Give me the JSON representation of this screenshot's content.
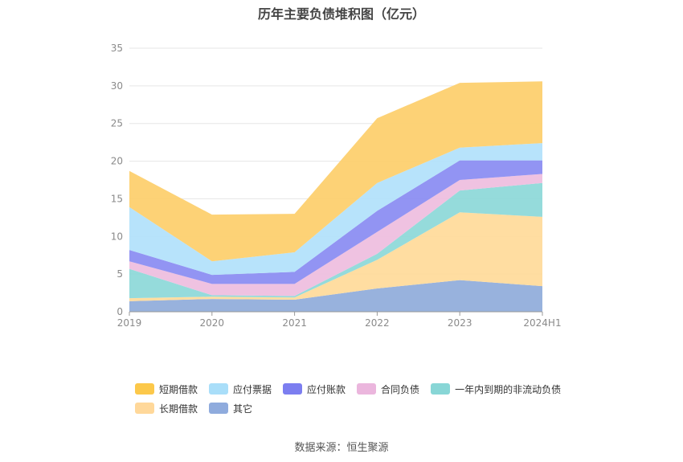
{
  "chart_data": {
    "type": "area",
    "stacked": true,
    "title": "历年主要负债堆积图（亿元）",
    "categories": [
      "2019",
      "2020",
      "2021",
      "2022",
      "2023",
      "2024H1"
    ],
    "ylim": [
      0,
      35
    ],
    "yticks": [
      0,
      5,
      10,
      15,
      20,
      25,
      30,
      35
    ],
    "grid": true,
    "legend_position": "bottom",
    "series": [
      {
        "name": "其它",
        "color": "#92aedb",
        "values": [
          1.4,
          1.7,
          1.6,
          3.1,
          4.2,
          3.4
        ]
      },
      {
        "name": "长期借款",
        "color": "#ffdb9c",
        "values": [
          0.4,
          0.3,
          0.3,
          3.8,
          9.0,
          9.2
        ]
      },
      {
        "name": "一年内到期的非流动负债",
        "color": "#8fd9d9",
        "values": [
          3.9,
          0.2,
          0.2,
          0.8,
          2.9,
          4.5
        ]
      },
      {
        "name": "合同负债",
        "color": "#eebfdf",
        "values": [
          1.0,
          1.5,
          1.6,
          2.9,
          1.4,
          1.2
        ]
      },
      {
        "name": "应付账款",
        "color": "#8c8ef2",
        "values": [
          1.5,
          1.2,
          1.6,
          2.8,
          2.6,
          1.8
        ]
      },
      {
        "name": "应付票据",
        "color": "#b3e2fb",
        "values": [
          5.7,
          1.8,
          2.6,
          3.7,
          1.7,
          2.3
        ]
      },
      {
        "name": "短期借款",
        "color": "#fdd06f",
        "values": [
          4.8,
          6.2,
          5.1,
          8.6,
          8.6,
          8.2
        ]
      }
    ],
    "legend": [
      [
        {
          "name": "短期借款",
          "color": "#fcc84a"
        },
        {
          "name": "应付票据",
          "color": "#a9def9"
        },
        {
          "name": "应付账款",
          "color": "#7c7ef0"
        },
        {
          "name": "合同负债",
          "color": "#ebb6dd"
        },
        {
          "name": "一年内到期的非流动负债",
          "color": "#88d6d6"
        }
      ],
      [
        {
          "name": "长期借款",
          "color": "#ffd89a"
        },
        {
          "name": "其它",
          "color": "#8fabdd"
        }
      ]
    ]
  },
  "source_text": "数据来源：恒生聚源"
}
